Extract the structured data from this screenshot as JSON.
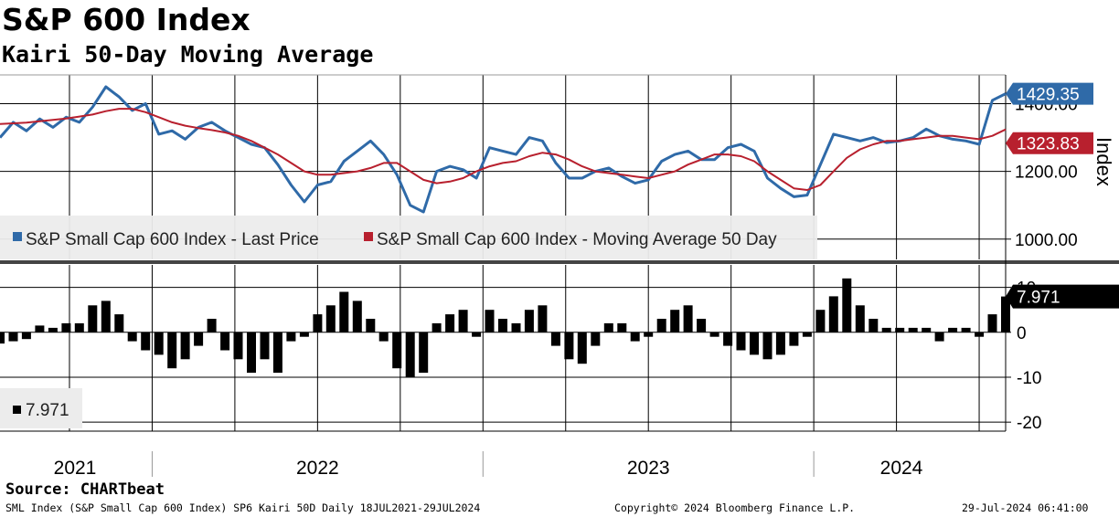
{
  "header": {
    "title": "S&P 600 Index",
    "subtitle": "Kairi 50-Day Moving Average"
  },
  "footer": {
    "source": "Source: CHARTbeat",
    "description": "SML Index (S&P Small Cap 600 Index) SP6 Kairi 50D  Daily 18JUL2021-29JUL2024",
    "copyright": "Copyright© 2024 Bloomberg Finance L.P.",
    "timestamp": "29-Jul-2024 06:41:00"
  },
  "colors": {
    "price": "#2f6aa8",
    "ma": "#b8202e",
    "kairi": "#000000",
    "grid": "#000000"
  },
  "chart_data": [
    {
      "type": "line",
      "name": "price-panel",
      "axis_title": "Index",
      "ylim": [
        940,
        1485
      ],
      "y_ticks": [
        1000,
        1200,
        1400
      ],
      "y_tick_labels": [
        "1000.00",
        "1200.00",
        "1400.00"
      ],
      "x_start_label": "18JUL2021",
      "x_end_label": "29JUL2024",
      "x_range": [
        2021.54,
        2024.58
      ],
      "legend": [
        {
          "label": "S&P Small Cap 600 Index - Last Price",
          "color": "#2f6aa8"
        },
        {
          "label": "S&P Small Cap 600 Index - Moving Average 50 Day",
          "color": "#b8202e"
        }
      ],
      "last_value_labels": [
        {
          "text": "1429.35",
          "value": 1429.35,
          "color": "#2f6aa8"
        },
        {
          "text": "1323.83",
          "value": 1323.83,
          "color": "#b8202e"
        }
      ],
      "series": [
        {
          "name": "S&P Small Cap 600 Index - Last Price",
          "x": [
            2021.54,
            2021.58,
            2021.62,
            2021.66,
            2021.7,
            2021.74,
            2021.78,
            2021.82,
            2021.86,
            2021.9,
            2021.94,
            2021.98,
            2022.02,
            2022.06,
            2022.1,
            2022.14,
            2022.18,
            2022.22,
            2022.26,
            2022.3,
            2022.34,
            2022.38,
            2022.42,
            2022.46,
            2022.5,
            2022.54,
            2022.58,
            2022.62,
            2022.66,
            2022.7,
            2022.74,
            2022.78,
            2022.82,
            2022.86,
            2022.9,
            2022.94,
            2022.98,
            2023.02,
            2023.06,
            2023.1,
            2023.14,
            2023.18,
            2023.22,
            2023.26,
            2023.3,
            2023.34,
            2023.38,
            2023.42,
            2023.46,
            2023.5,
            2023.54,
            2023.58,
            2023.62,
            2023.66,
            2023.7,
            2023.74,
            2023.78,
            2023.82,
            2023.86,
            2023.9,
            2023.94,
            2023.98,
            2024.02,
            2024.06,
            2024.1,
            2024.14,
            2024.18,
            2024.22,
            2024.26,
            2024.3,
            2024.34,
            2024.38,
            2024.42,
            2024.46,
            2024.5,
            2024.54,
            2024.58
          ],
          "values": [
            1300,
            1345,
            1320,
            1355,
            1330,
            1360,
            1345,
            1390,
            1450,
            1420,
            1380,
            1400,
            1310,
            1320,
            1295,
            1330,
            1345,
            1320,
            1300,
            1280,
            1270,
            1220,
            1160,
            1110,
            1160,
            1170,
            1230,
            1260,
            1290,
            1250,
            1190,
            1100,
            1080,
            1200,
            1215,
            1205,
            1180,
            1270,
            1260,
            1250,
            1300,
            1290,
            1225,
            1180,
            1180,
            1200,
            1210,
            1185,
            1165,
            1175,
            1230,
            1250,
            1260,
            1235,
            1235,
            1270,
            1280,
            1260,
            1180,
            1150,
            1125,
            1130,
            1220,
            1310,
            1300,
            1290,
            1300,
            1285,
            1290,
            1300,
            1325,
            1305,
            1295,
            1290,
            1280,
            1410,
            1429.35
          ]
        },
        {
          "name": "S&P Small Cap 600 Index - Moving Average 50 Day",
          "x": [
            2021.54,
            2021.58,
            2021.62,
            2021.66,
            2021.7,
            2021.74,
            2021.78,
            2021.82,
            2021.86,
            2021.9,
            2021.94,
            2021.98,
            2022.02,
            2022.06,
            2022.1,
            2022.14,
            2022.18,
            2022.22,
            2022.26,
            2022.3,
            2022.34,
            2022.38,
            2022.42,
            2022.46,
            2022.5,
            2022.54,
            2022.58,
            2022.62,
            2022.66,
            2022.7,
            2022.74,
            2022.78,
            2022.82,
            2022.86,
            2022.9,
            2022.94,
            2022.98,
            2023.02,
            2023.06,
            2023.1,
            2023.14,
            2023.18,
            2023.22,
            2023.26,
            2023.3,
            2023.34,
            2023.38,
            2023.42,
            2023.46,
            2023.5,
            2023.54,
            2023.58,
            2023.62,
            2023.66,
            2023.7,
            2023.74,
            2023.78,
            2023.82,
            2023.86,
            2023.9,
            2023.94,
            2023.98,
            2024.02,
            2024.06,
            2024.1,
            2024.14,
            2024.18,
            2024.22,
            2024.26,
            2024.3,
            2024.34,
            2024.38,
            2024.42,
            2024.46,
            2024.5,
            2024.54,
            2024.58
          ],
          "values": [
            1340,
            1342,
            1344,
            1348,
            1352,
            1356,
            1362,
            1368,
            1378,
            1385,
            1385,
            1375,
            1360,
            1345,
            1335,
            1328,
            1322,
            1315,
            1305,
            1290,
            1270,
            1250,
            1225,
            1200,
            1190,
            1190,
            1195,
            1200,
            1210,
            1225,
            1225,
            1200,
            1175,
            1165,
            1170,
            1180,
            1200,
            1215,
            1225,
            1230,
            1245,
            1255,
            1250,
            1235,
            1215,
            1200,
            1195,
            1190,
            1185,
            1180,
            1190,
            1200,
            1220,
            1235,
            1250,
            1250,
            1245,
            1230,
            1200,
            1175,
            1150,
            1145,
            1160,
            1200,
            1240,
            1265,
            1280,
            1290,
            1290,
            1295,
            1300,
            1305,
            1305,
            1300,
            1295,
            1305,
            1323.83
          ]
        }
      ]
    },
    {
      "type": "bar",
      "name": "kairi-panel",
      "ylim": [
        -22,
        15
      ],
      "y_ticks": [
        -20,
        -10,
        0,
        10
      ],
      "y_tick_labels": [
        "-20",
        "-10",
        "0",
        "10"
      ],
      "legend": [
        {
          "label": "7.971",
          "color": "#000000"
        }
      ],
      "last_value_label": {
        "text": "7.971",
        "value": 7.971
      },
      "x": [
        2021.54,
        2021.58,
        2021.62,
        2021.66,
        2021.7,
        2021.74,
        2021.78,
        2021.82,
        2021.86,
        2021.9,
        2021.94,
        2021.98,
        2022.02,
        2022.06,
        2022.1,
        2022.14,
        2022.18,
        2022.22,
        2022.26,
        2022.3,
        2022.34,
        2022.38,
        2022.42,
        2022.46,
        2022.5,
        2022.54,
        2022.58,
        2022.62,
        2022.66,
        2022.7,
        2022.74,
        2022.78,
        2022.82,
        2022.86,
        2022.9,
        2022.94,
        2022.98,
        2023.02,
        2023.06,
        2023.1,
        2023.14,
        2023.18,
        2023.22,
        2023.26,
        2023.3,
        2023.34,
        2023.38,
        2023.42,
        2023.46,
        2023.5,
        2023.54,
        2023.58,
        2023.62,
        2023.66,
        2023.7,
        2023.74,
        2023.78,
        2023.82,
        2023.86,
        2023.9,
        2023.94,
        2023.98,
        2024.02,
        2024.06,
        2024.1,
        2024.14,
        2024.18,
        2024.22,
        2024.26,
        2024.3,
        2024.34,
        2024.38,
        2024.42,
        2024.46,
        2024.5,
        2024.54,
        2024.58
      ],
      "values": [
        -2.5,
        -2,
        -1.5,
        1.5,
        1,
        2,
        2,
        6,
        7,
        4,
        -2,
        -4,
        -5,
        -8,
        -6,
        -3,
        3,
        -4,
        -6,
        -9,
        -6,
        -9,
        -2,
        -1,
        4,
        6,
        9,
        7,
        3,
        -2,
        -8,
        -10,
        -9,
        2,
        4,
        5,
        -1,
        5,
        3,
        2,
        5,
        6,
        -3,
        -6,
        -7,
        -3,
        2,
        2,
        -2,
        -1,
        3,
        5,
        6,
        3,
        -1,
        -3,
        -4,
        -5,
        -6,
        -5,
        -3,
        -1,
        5,
        8,
        12,
        6,
        3,
        1,
        1,
        1,
        1,
        -2,
        1,
        1,
        -1,
        4,
        7.971
      ]
    }
  ],
  "x_axis": {
    "year_labels": [
      "2021",
      "2022",
      "2023",
      "2024"
    ]
  }
}
